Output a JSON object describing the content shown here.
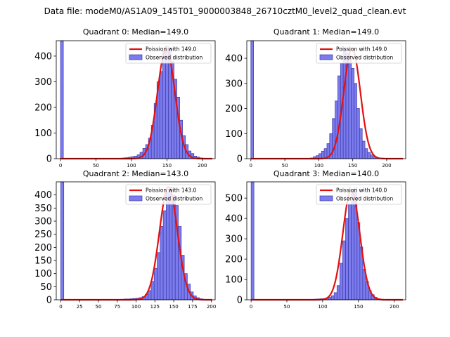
{
  "figure": {
    "title": "Data file: modeM0/AS1A09_145T01_9000003848_26710cztM0_level2_quad_clean.evt"
  },
  "colors": {
    "bar_fill": "#7b7bee",
    "bar_edge": "#3a3aa6",
    "poisson": "#e41010"
  },
  "chart_data": [
    {
      "type": "bar",
      "title": "Quadrant 0: Median=149.0",
      "median": 149.0,
      "bin_width": 4,
      "xlim": [
        -6,
        218
      ],
      "ylim": [
        0,
        460
      ],
      "xticks": [
        0,
        50,
        100,
        150,
        200
      ],
      "yticks": [
        0,
        100,
        200,
        300,
        400
      ],
      "series": [
        {
          "name": "Poission with 149.0",
          "kind": "line",
          "peak": 430,
          "center": 149,
          "sigma": 12.2
        },
        {
          "name": "Observed distribution",
          "kind": "histogram",
          "bins": [
            [
              0,
              460
            ],
            [
              84,
              2
            ],
            [
              88,
              3
            ],
            [
              92,
              4
            ],
            [
              96,
              6
            ],
            [
              100,
              8
            ],
            [
              104,
              10
            ],
            [
              108,
              15
            ],
            [
              112,
              25
            ],
            [
              116,
              40
            ],
            [
              120,
              55
            ],
            [
              124,
              80
            ],
            [
              128,
              130
            ],
            [
              132,
              215
            ],
            [
              136,
              300
            ],
            [
              140,
              340
            ],
            [
              144,
              420
            ],
            [
              148,
              440
            ],
            [
              152,
              430
            ],
            [
              156,
              380
            ],
            [
              160,
              310
            ],
            [
              164,
              240
            ],
            [
              168,
              150
            ],
            [
              172,
              90
            ],
            [
              176,
              55
            ],
            [
              180,
              30
            ],
            [
              184,
              20
            ],
            [
              188,
              10
            ],
            [
              192,
              6
            ],
            [
              196,
              3
            ],
            [
              200,
              2
            ],
            [
              204,
              1
            ]
          ]
        }
      ],
      "legend_loc": "upper right"
    },
    {
      "type": "bar",
      "title": "Quadrant 1: Median=149.0",
      "median": 149.0,
      "bin_width": 4,
      "xlim": [
        -6,
        228
      ],
      "ylim": [
        0,
        470
      ],
      "xticks": [
        0,
        50,
        100,
        150,
        200
      ],
      "yticks": [
        0,
        100,
        200,
        300,
        400
      ],
      "series": [
        {
          "name": "Poission with 149.0",
          "kind": "line",
          "peak": 440,
          "center": 149,
          "sigma": 12.2
        },
        {
          "name": "Observed distribution",
          "kind": "histogram",
          "bins": [
            [
              0,
              470
            ],
            [
              88,
              3
            ],
            [
              92,
              8
            ],
            [
              96,
              12
            ],
            [
              100,
              20
            ],
            [
              104,
              30
            ],
            [
              108,
              40
            ],
            [
              112,
              60
            ],
            [
              116,
              100
            ],
            [
              120,
              160
            ],
            [
              124,
              230
            ],
            [
              128,
              330
            ],
            [
              132,
              380
            ],
            [
              136,
              440
            ],
            [
              140,
              420
            ],
            [
              144,
              410
            ],
            [
              148,
              360
            ],
            [
              152,
              300
            ],
            [
              156,
              200
            ],
            [
              160,
              120
            ],
            [
              164,
              70
            ],
            [
              168,
              40
            ],
            [
              172,
              25
            ],
            [
              176,
              15
            ],
            [
              180,
              8
            ],
            [
              184,
              5
            ],
            [
              188,
              3
            ],
            [
              192,
              2
            ],
            [
              196,
              1
            ],
            [
              208,
              1
            ],
            [
              212,
              1
            ]
          ]
        }
      ],
      "legend_loc": "upper right"
    },
    {
      "type": "bar",
      "title": "Quadrant 2: Median=143.0",
      "median": 143.0,
      "bin_width": 4,
      "xlim": [
        -6,
        205
      ],
      "ylim": [
        0,
        450
      ],
      "xticks": [
        0,
        25,
        50,
        75,
        100,
        125,
        150,
        175,
        200
      ],
      "yticks": [
        0,
        50,
        100,
        150,
        200,
        250,
        300,
        350,
        400
      ],
      "series": [
        {
          "name": "Poission with 143.0",
          "kind": "line",
          "peak": 430,
          "center": 143,
          "sigma": 11.96
        },
        {
          "name": "Observed distribution",
          "kind": "histogram",
          "bins": [
            [
              0,
              450
            ],
            [
              80,
              2
            ],
            [
              84,
              3
            ],
            [
              88,
              3
            ],
            [
              92,
              4
            ],
            [
              96,
              5
            ],
            [
              100,
              6
            ],
            [
              104,
              8
            ],
            [
              108,
              12
            ],
            [
              112,
              20
            ],
            [
              116,
              35
            ],
            [
              120,
              70
            ],
            [
              124,
              120
            ],
            [
              128,
              180
            ],
            [
              132,
              280
            ],
            [
              136,
              340
            ],
            [
              140,
              410
            ],
            [
              144,
              430
            ],
            [
              148,
              400
            ],
            [
              152,
              360
            ],
            [
              156,
              280
            ],
            [
              160,
              170
            ],
            [
              164,
              100
            ],
            [
              168,
              60
            ],
            [
              172,
              30
            ],
            [
              176,
              15
            ],
            [
              180,
              8
            ],
            [
              184,
              4
            ],
            [
              188,
              2
            ],
            [
              192,
              1
            ]
          ]
        }
      ],
      "legend_loc": "upper right"
    },
    {
      "type": "bar",
      "title": "Quadrant 3: Median=140.0",
      "median": 140.0,
      "bin_width": 4,
      "xlim": [
        -6,
        216
      ],
      "ylim": [
        0,
        580
      ],
      "xticks": [
        0,
        50,
        100,
        150,
        200
      ],
      "yticks": [
        0,
        100,
        200,
        300,
        400,
        500
      ],
      "series": [
        {
          "name": "Poission with 140.0",
          "kind": "line",
          "peak": 540,
          "center": 140,
          "sigma": 11.83
        },
        {
          "name": "Observed distribution",
          "kind": "histogram",
          "bins": [
            [
              0,
              580
            ],
            [
              84,
              2
            ],
            [
              88,
              3
            ],
            [
              92,
              4
            ],
            [
              96,
              5
            ],
            [
              100,
              6
            ],
            [
              104,
              8
            ],
            [
              108,
              12
            ],
            [
              112,
              20
            ],
            [
              116,
              35
            ],
            [
              120,
              70
            ],
            [
              124,
              180
            ],
            [
              128,
              290
            ],
            [
              132,
              400
            ],
            [
              136,
              470
            ],
            [
              140,
              540
            ],
            [
              144,
              550
            ],
            [
              148,
              380
            ],
            [
              152,
              260
            ],
            [
              156,
              150
            ],
            [
              160,
              90
            ],
            [
              164,
              45
            ],
            [
              168,
              25
            ],
            [
              172,
              12
            ],
            [
              176,
              6
            ],
            [
              180,
              3
            ],
            [
              184,
              2
            ]
          ]
        }
      ],
      "legend_loc": "upper right"
    }
  ]
}
